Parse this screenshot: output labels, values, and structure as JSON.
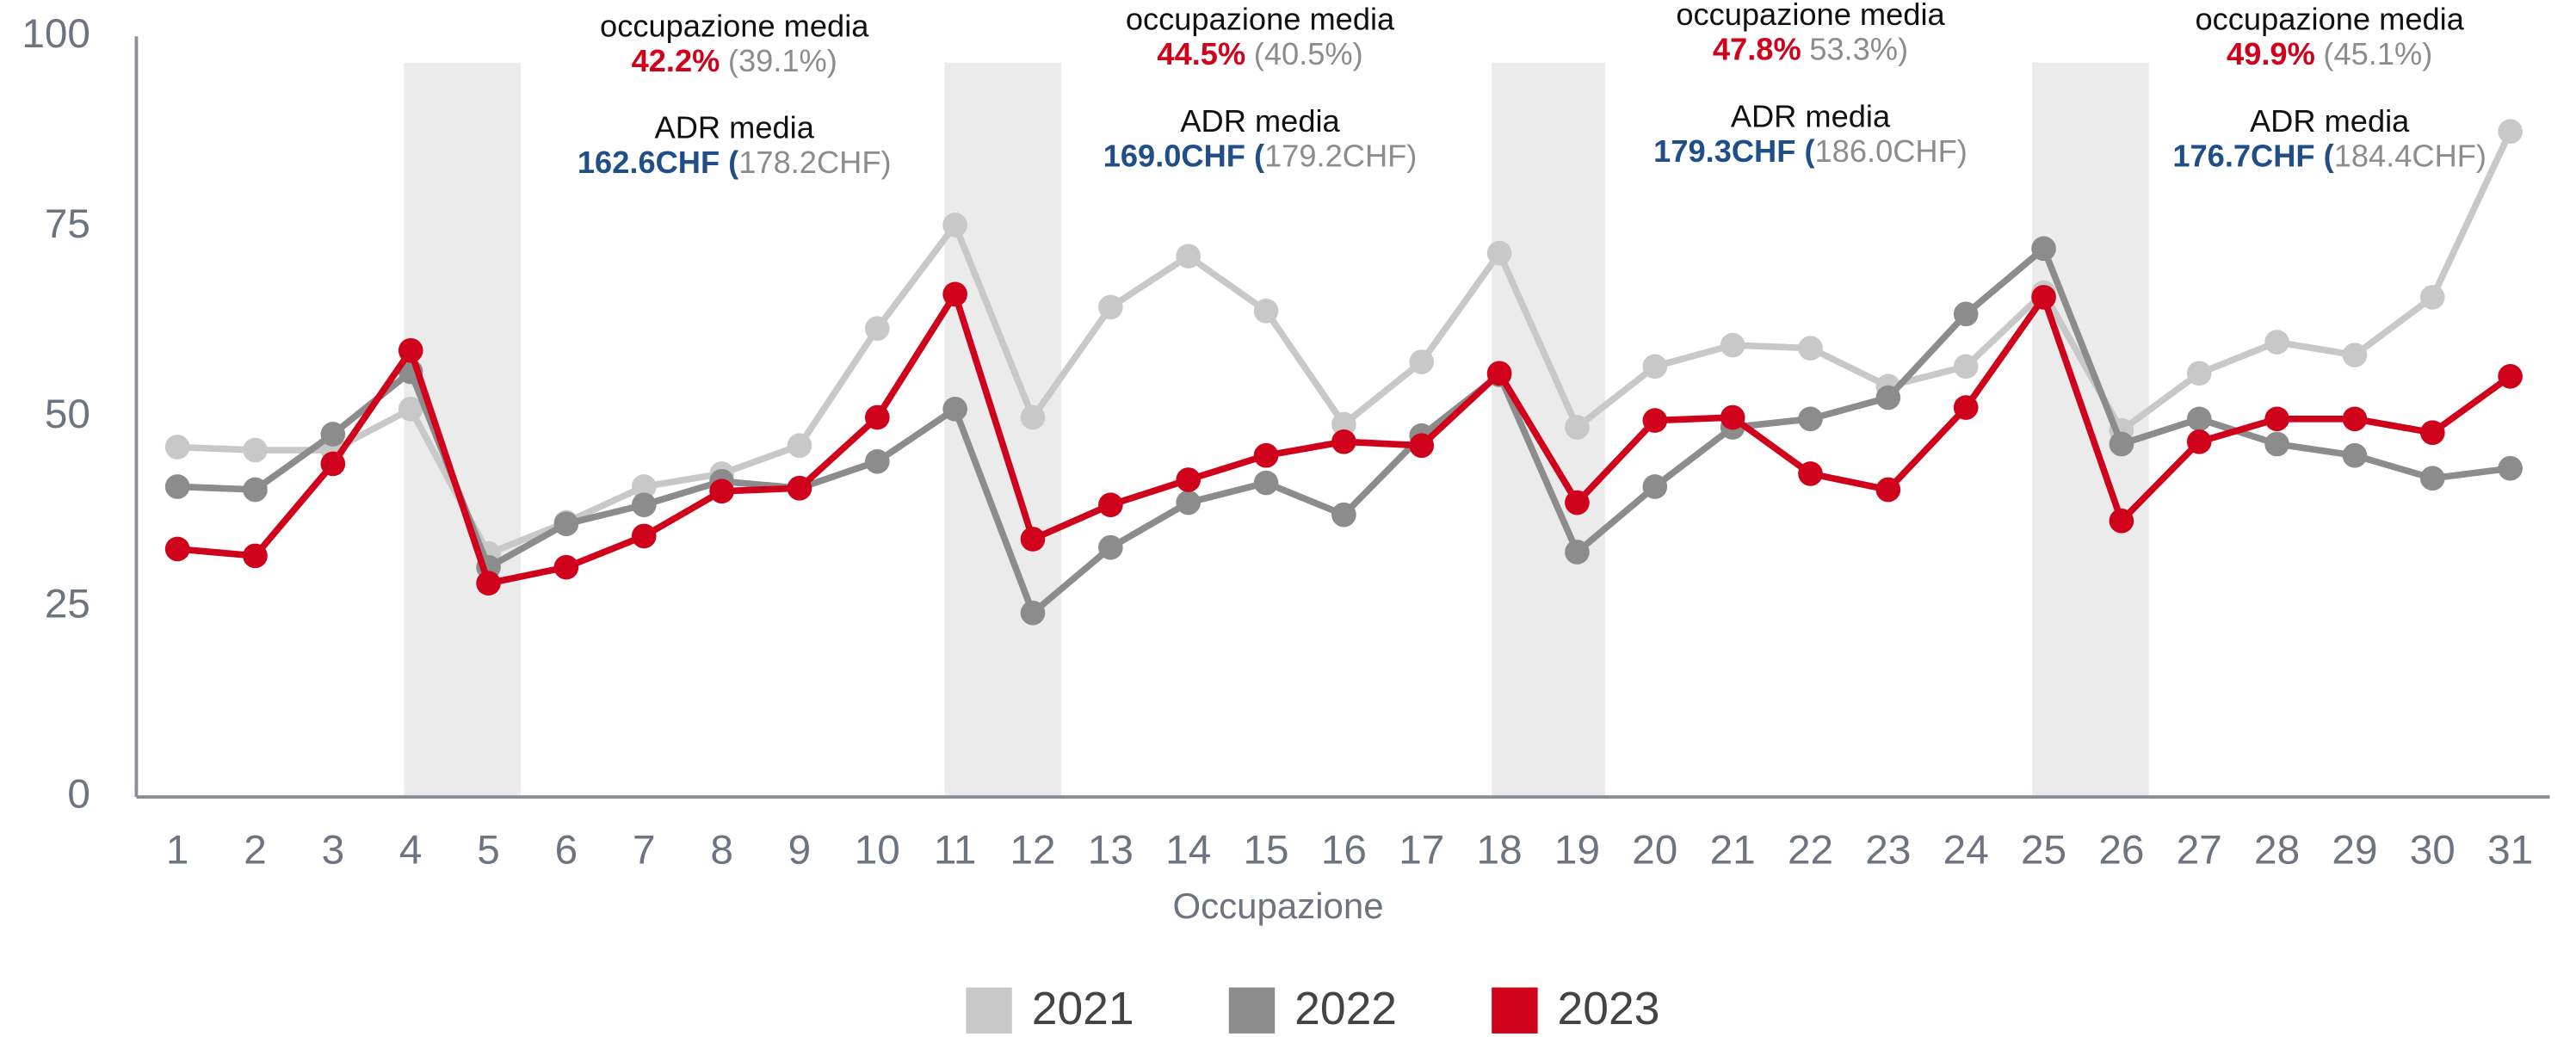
{
  "chart_data": {
    "type": "line",
    "x_label": "Occupazione",
    "categories": [
      "1",
      "2",
      "3",
      "4",
      "5",
      "6",
      "7",
      "8",
      "9",
      "10",
      "11",
      "12",
      "13",
      "14",
      "15",
      "16",
      "17",
      "18",
      "19",
      "20",
      "21",
      "22",
      "23",
      "24",
      "25",
      "26",
      "27",
      "28",
      "29",
      "30",
      "31"
    ],
    "series": [
      {
        "name": "2021",
        "color": "#c8c8c8",
        "values": [
          46.0,
          45.6,
          45.6,
          51.0,
          32.0,
          36.1,
          40.8,
          42.5,
          46.2,
          61.6,
          75.2,
          49.9,
          64.4,
          71.1,
          63.9,
          49.0,
          57.2,
          71.5,
          48.6,
          56.6,
          59.4,
          59.0,
          54.0,
          56.6,
          66.3,
          48.2,
          55.7,
          59.8,
          58.1,
          65.7,
          87.5
        ]
      },
      {
        "name": "2022",
        "color": "#8c8c8c",
        "values": [
          40.8,
          40.4,
          47.7,
          55.9,
          30.2,
          35.9,
          38.4,
          41.5,
          40.6,
          44.1,
          51.0,
          24.2,
          32.8,
          38.7,
          41.3,
          37.1,
          47.5,
          55.5,
          32.2,
          40.8,
          48.6,
          49.7,
          52.5,
          63.5,
          72.1,
          46.4,
          49.7,
          46.4,
          44.9,
          41.9,
          43.2
        ]
      },
      {
        "name": "2023",
        "color": "#d0021b",
        "values": [
          32.6,
          31.7,
          43.8,
          58.7,
          28.1,
          30.2,
          34.3,
          40.2,
          40.6,
          49.9,
          66.1,
          33.9,
          38.4,
          41.7,
          44.9,
          46.7,
          46.2,
          55.7,
          38.7,
          49.5,
          49.9,
          42.5,
          40.4,
          51.2,
          65.7,
          36.3,
          46.7,
          49.7,
          49.7,
          47.9,
          55.3
        ]
      }
    ],
    "ylim": [
      0,
      100
    ],
    "yticks": [
      0,
      25,
      50,
      75,
      100
    ],
    "grid": false,
    "annotations": [
      {
        "occ_label": "occupazione media",
        "occ": "42.2%",
        "occ_prior": "(39.1%)",
        "adr_label": "ADR media",
        "adr": "162.6CHF (",
        "adr_prior": "178.2CHF)"
      },
      {
        "occ_label": "occupazione media",
        "occ": "44.5%",
        "occ_prior": "(40.5%)",
        "adr_label": "ADR media",
        "adr": "169.0CHF (",
        "adr_prior": "179.2CHF)"
      },
      {
        "occ_label": "occupazione media",
        "occ": "47.8%",
        "occ_prior": "53.3%)",
        "adr_label": "ADR media",
        "adr": "179.3CHF (",
        "adr_prior": "186.0CHF)"
      },
      {
        "occ_label": "occupazione media",
        "occ": "49.9%",
        "occ_prior": "(45.1%)",
        "adr_label": "ADR media",
        "adr": "176.7CHF (",
        "adr_prior": "184.4CHF)"
      }
    ]
  }
}
